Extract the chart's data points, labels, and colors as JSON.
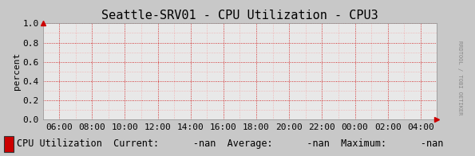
{
  "title": "Seattle-SRV01 - CPU Utilization - CPU3",
  "ylabel": "percent",
  "background_color": "#c8c8c8",
  "plot_bg_color": "#e8e8e8",
  "grid_color": "#ff6666",
  "grid_major_color": "#cc0000",
  "border_color": "#aaaaaa",
  "xlim_labels": [
    "06:00",
    "08:00",
    "10:00",
    "12:00",
    "14:00",
    "16:00",
    "18:00",
    "20:00",
    "22:00",
    "00:00",
    "02:00",
    "04:00"
  ],
  "ylim": [
    0.0,
    1.0
  ],
  "yticks": [
    0.0,
    0.2,
    0.4,
    0.6,
    0.8,
    1.0
  ],
  "legend_label": "CPU Utilization",
  "legend_color": "#cc0000",
  "legend_extra": "  Current:      -nan  Average:      -nan  Maximum:      -nan",
  "arrow_color": "#cc0000",
  "side_label": "RRDTOOL / TOBI OETIKER",
  "title_fontsize": 11,
  "axis_fontsize": 8,
  "legend_fontsize": 8.5,
  "side_fontsize": 5,
  "figsize": [
    5.95,
    1.96
  ],
  "dpi": 100
}
